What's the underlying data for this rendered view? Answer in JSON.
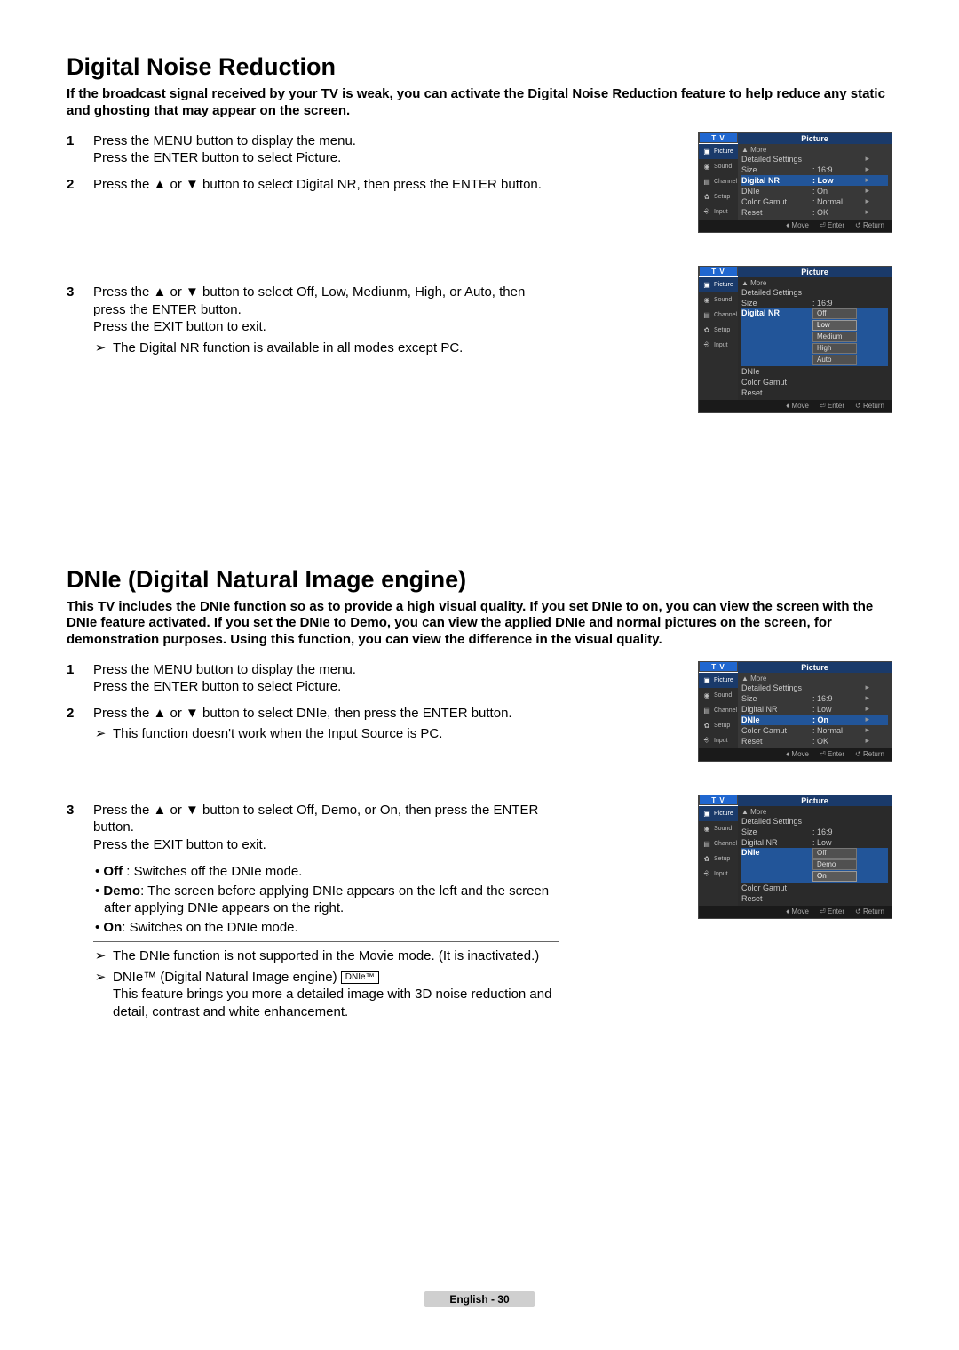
{
  "sections": {
    "dnr": {
      "title": "Digital Noise Reduction",
      "intro": "If the broadcast signal received by your TV is weak, you can activate the Digital Noise Reduction feature to help reduce any static and ghosting that may appear on the screen.",
      "step1_l1": "Press the MENU button to display the menu.",
      "step1_l2": "Press the ENTER button to select Picture.",
      "step2": "Press the ▲ or ▼ button to select Digital NR, then press the ENTER button.",
      "step3_l1": "Press the ▲ or ▼ button to select Off, Low, Mediunm, High, or Auto, then press the ENTER button.",
      "step3_l2": "Press the EXIT button to exit.",
      "step3_note": "The Digital NR function is available in all modes except PC."
    },
    "dnie": {
      "title": "DNIe (Digital Natural Image engine)",
      "intro": "This TV includes the DNIe function so as to provide a high visual quality. If you set DNIe to on, you can view the screen with the DNIe feature activated. If you set the DNIe to Demo, you can view the applied DNIe and normal pictures on the screen, for demonstration purposes. Using this function, you can view the difference in the visual quality.",
      "step1_l1": "Press the MENU button to display the menu.",
      "step1_l2": "Press the ENTER button to select Picture.",
      "step2_l1": "Press the ▲ or ▼ button to select DNIe, then press the ENTER button.",
      "step2_note": "This function doesn't work when the Input Source is PC.",
      "step3_l1": "Press the ▲ or ▼ button to select Off, Demo, or On, then press the ENTER button.",
      "step3_l2": "Press the EXIT button to exit.",
      "bul_off": "Off : Switches off the DNIe mode.",
      "bul_demo": "Demo: The screen before applying DNIe appears on the left and the screen after applying DNIe appears on the right.",
      "bul_on": "On: Switches on the DNIe mode.",
      "note1": "The DNIe function is not supported in the Movie mode. (It is inactivated.)",
      "note2_pre": "DNIe™ (Digital Natural Image engine)",
      "note2_badge": "DNIe™",
      "note2_sub": "This feature brings you more a detailed image with 3D noise reduction and detail, contrast and white enhancement."
    }
  },
  "osd_common": {
    "tv": "T V",
    "title": "Picture",
    "sidebar": [
      "Picture",
      "Sound",
      "Channel",
      "Setup",
      "Input"
    ],
    "more": "▲ More",
    "foot_move": "Move",
    "foot_enter": "Enter",
    "foot_return": "Return",
    "menu_rows": [
      {
        "k": "Detailed Settings",
        "v": ""
      },
      {
        "k": "Size",
        "v": ": 16:9"
      },
      {
        "k": "Digital NR",
        "v": ": Low"
      },
      {
        "k": "DNIe",
        "v": ": On"
      },
      {
        "k": "Color Gamut",
        "v": ": Normal"
      },
      {
        "k": "Reset",
        "v": ": OK"
      }
    ],
    "dnr_options": [
      "Off",
      "Low",
      "Medium",
      "High",
      "Auto"
    ],
    "dnie_options": [
      "Off",
      "Demo",
      "On"
    ],
    "osd3_rows": [
      {
        "k": "Detailed Settings",
        "v": ""
      },
      {
        "k": "Size",
        "v": ": 16:9"
      },
      {
        "k": "Digital NR",
        "v": ": Low"
      },
      {
        "k": "DNIe",
        "v": ""
      },
      {
        "k": "Color Gamut",
        "v": ""
      },
      {
        "k": "Reset",
        "v": ""
      }
    ],
    "osd4_rows": [
      {
        "k": "Detailed Settings",
        "v": ""
      },
      {
        "k": "Size",
        "v": ": 16:9"
      },
      {
        "k": "Digital NR",
        "v": ""
      },
      {
        "k": "DNIe",
        "v": ""
      },
      {
        "k": "Color Gamut",
        "v": ""
      },
      {
        "k": "Reset",
        "v": ""
      }
    ]
  },
  "footer": "English - 30",
  "colors": {
    "osd_blue": "#1a3a6a",
    "osd_hi": "#225599",
    "osd_bg": "#383838"
  }
}
